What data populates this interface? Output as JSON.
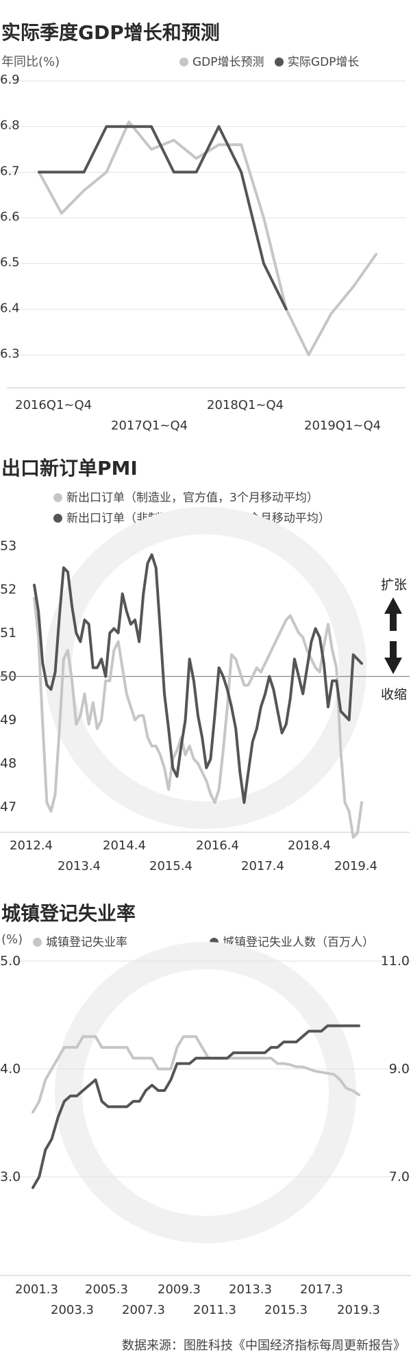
{
  "chart_data": [
    {
      "type": "line",
      "title": "实际季度GDP增长和预测",
      "ylabel": "年同比(%)",
      "ylim": [
        6.3,
        6.9
      ],
      "yticks": [
        "6.3",
        "6.4",
        "6.5",
        "6.6",
        "6.7",
        "6.8",
        "6.9"
      ],
      "xticks": [
        "2016Q1~Q4",
        "2017Q1~Q4",
        "2018Q1~Q4",
        "2019Q1~Q4"
      ],
      "legend": [
        "GDP增长预测",
        "实际GDP增长"
      ],
      "legend_position": "top-right",
      "grid": true,
      "colors": {
        "forecast": "#c6c6c6",
        "actual": "#555555"
      },
      "series": [
        {
          "name": "GDP增长预测",
          "x": [
            0,
            1,
            2,
            3,
            4,
            5,
            6,
            7,
            8,
            9,
            10,
            11,
            12,
            13,
            14,
            15
          ],
          "values": [
            6.7,
            6.61,
            6.66,
            6.7,
            6.81,
            6.75,
            6.77,
            6.73,
            6.76,
            6.76,
            6.6,
            6.4,
            6.3,
            6.39,
            6.45,
            6.52
          ]
        },
        {
          "name": "实际GDP增长",
          "x": [
            0,
            1,
            2,
            3,
            4,
            5,
            6,
            7,
            8,
            9,
            10,
            11
          ],
          "values": [
            6.7,
            6.7,
            6.7,
            6.8,
            6.8,
            6.8,
            6.7,
            6.7,
            6.8,
            6.7,
            6.5,
            6.4
          ]
        }
      ]
    },
    {
      "type": "line",
      "title": "出口新订单PMI",
      "ylim": [
        47,
        53
      ],
      "yticks": [
        "47",
        "48",
        "49",
        "50",
        "51",
        "52",
        "53"
      ],
      "xticks": [
        "2012.4",
        "2013.4",
        "2014.4",
        "2015.4",
        "2016.4",
        "2017.4",
        "2018.4",
        "2019.4"
      ],
      "legend": [
        "新出口订单（制造业，官方值，3个月移动平均）",
        "新出口订单（非制造业，官方值，3个月移动平均）"
      ],
      "annotations": [
        "扩张",
        "收缩"
      ],
      "reference_line": 50,
      "colors": {
        "manufacturing": "#c6c6c6",
        "nonmanufacturing": "#555555"
      },
      "series": [
        {
          "name": "新出口订单（制造业，官方值，3个月移动平均）",
          "values": [
            51.8,
            50.9,
            48.9,
            47.1,
            46.9,
            47.3,
            48.8,
            50.4,
            50.6,
            49.9,
            48.9,
            49.1,
            49.6,
            48.9,
            49.4,
            48.8,
            49.0,
            49.9,
            49.9,
            50.6,
            50.8,
            50.2,
            49.6,
            49.3,
            49.0,
            49.1,
            49.1,
            48.6,
            48.4,
            48.4,
            48.2,
            47.9,
            47.4,
            48.1,
            48.3,
            48.6,
            48.2,
            48.4,
            48.1,
            48.0,
            47.8,
            47.6,
            47.3,
            47.1,
            47.4,
            48.3,
            49.3,
            50.5,
            50.4,
            50.1,
            49.8,
            49.8,
            50.0,
            50.2,
            50.1,
            50.3,
            50.5,
            50.7,
            50.9,
            51.1,
            51.3,
            51.4,
            51.2,
            51.0,
            50.9,
            50.6,
            50.4,
            50.2,
            50.1,
            50.7,
            51.2,
            50.6,
            50.2,
            48.3,
            47.1,
            46.9,
            46.3,
            46.4,
            47.1
          ]
        },
        {
          "name": "新出口订单（非制造业，官方值，3个月移动平均）",
          "values": [
            52.1,
            51.5,
            50.3,
            49.8,
            49.7,
            50.1,
            51.4,
            52.5,
            52.4,
            51.6,
            51.0,
            50.8,
            51.3,
            51.2,
            50.2,
            50.2,
            50.4,
            50.0,
            51.0,
            51.1,
            51.0,
            51.9,
            51.5,
            51.2,
            51.3,
            50.8,
            51.9,
            52.6,
            52.8,
            52.5,
            51.1,
            49.6,
            48.8,
            47.9,
            47.7,
            48.4,
            49.0,
            50.4,
            49.9,
            49.1,
            48.6,
            47.9,
            48.1,
            49.1,
            50.2,
            50.0,
            49.7,
            49.3,
            48.8,
            47.8,
            47.1,
            47.8,
            48.5,
            48.8,
            49.3,
            49.6,
            50.0,
            49.7,
            49.2,
            48.7,
            48.9,
            49.5,
            50.4,
            50.0,
            49.6,
            50.2,
            50.8,
            51.1,
            50.9,
            50.3,
            49.3,
            49.9,
            49.9,
            49.2,
            49.1,
            49.0,
            50.5,
            50.4,
            50.3
          ]
        }
      ]
    },
    {
      "type": "line",
      "title": "城镇登记失业率",
      "ylabel": "(%)",
      "ylabel_right": "",
      "ylim": [
        3.0,
        5.0
      ],
      "ylim_right": [
        7.0,
        11.0
      ],
      "yticks": [
        "3.0",
        "4.0",
        "5.0"
      ],
      "yticks_right": [
        "7.0",
        "9.0",
        "11.0"
      ],
      "xticks": [
        "2001.3",
        "2003.3",
        "2005.3",
        "2007.3",
        "2009.3",
        "2011.3",
        "2013.3",
        "2015.3",
        "2017.3",
        "2019.3"
      ],
      "legend": [
        "城镇登记失业率",
        "城镇登记失业人数（百万人）"
      ],
      "colors": {
        "rate": "#c6c6c6",
        "count": "#555555"
      },
      "series": [
        {
          "name": "城镇登记失业率",
          "axis": "left",
          "values": [
            3.6,
            3.7,
            3.9,
            4.0,
            4.1,
            4.2,
            4.2,
            4.2,
            4.3,
            4.3,
            4.3,
            4.2,
            4.2,
            4.2,
            4.2,
            4.2,
            4.1,
            4.1,
            4.1,
            4.1,
            4.0,
            4.0,
            4.0,
            4.2,
            4.3,
            4.3,
            4.3,
            4.2,
            4.1,
            4.1,
            4.1,
            4.1,
            4.1,
            4.1,
            4.1,
            4.1,
            4.1,
            4.1,
            4.1,
            4.05,
            4.05,
            4.04,
            4.02,
            4.02,
            4.0,
            3.98,
            3.97,
            3.96,
            3.95,
            3.9,
            3.82,
            3.8,
            3.76
          ]
        },
        {
          "name": "城镇登记失业人数（百万人）",
          "axis": "right",
          "values": [
            6.8,
            7.0,
            7.5,
            7.7,
            8.1,
            8.4,
            8.5,
            8.5,
            8.6,
            8.7,
            8.8,
            8.4,
            8.3,
            8.3,
            8.3,
            8.3,
            8.4,
            8.4,
            8.6,
            8.7,
            8.6,
            8.6,
            8.8,
            9.1,
            9.1,
            9.1,
            9.2,
            9.2,
            9.2,
            9.2,
            9.2,
            9.2,
            9.3,
            9.3,
            9.3,
            9.3,
            9.3,
            9.3,
            9.4,
            9.4,
            9.5,
            9.5,
            9.5,
            9.6,
            9.7,
            9.7,
            9.7,
            9.8,
            9.8,
            9.8,
            9.8,
            9.8,
            9.8
          ]
        }
      ]
    }
  ],
  "source": "数据来源：图胜科技《中国经济指标每周更新报告》"
}
